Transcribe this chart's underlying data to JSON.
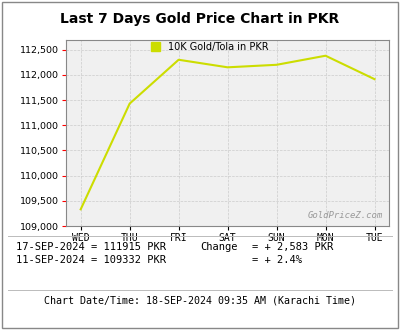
{
  "title": "Last 7 Days Gold Price Chart in PKR",
  "legend_label": "10K Gold/Tola in PKR",
  "x_labels": [
    "WED",
    "THU",
    "FRI",
    "SAT",
    "SUN",
    "MON",
    "TUE"
  ],
  "y_values": [
    109332,
    111430,
    112300,
    112150,
    112200,
    112380,
    111915
  ],
  "line_color": "#ccdd00",
  "ylim": [
    109000,
    112700
  ],
  "yticks": [
    109000,
    109500,
    110000,
    110500,
    111000,
    111500,
    112000,
    112500
  ],
  "watermark": "GoldPriceZ.com",
  "text_line1": "17-SEP-2024 = 111915 PKR",
  "text_line2": "11-SEP-2024 = 109332 PKR",
  "change_label": "Change",
  "change_val": "= + 2,583 PKR",
  "change_pct": "= + 2.4%",
  "footer": "Chart Date/Time: 18-SEP-2024 09:35 AM (Karachi Time)",
  "bg_color": "#ffffff",
  "plot_bg_color": "#f0f0f0",
  "grid_color": "#cccccc",
  "border_color": "#888888"
}
